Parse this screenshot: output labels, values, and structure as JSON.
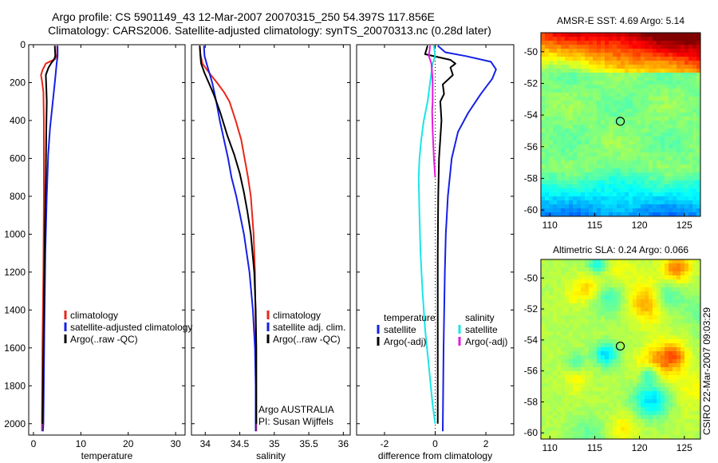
{
  "title_line1": "Argo profile: CS 5901149_43 12-Mar-2007 20070315_250 54.397S 117.856E",
  "title_line2": "Climatology: CARS2006. Satellite-adjusted climatology: synTS_20070313.nc (0.28d later)",
  "side_label": "CSIRO 22-Mar-2007 09:03:29",
  "colors": {
    "red": "#e8261a",
    "blue": "#1520e6",
    "black": "#000000",
    "cyan": "#19e6e6",
    "magenta": "#e61adf"
  },
  "chart_data": [
    {
      "type": "line",
      "id": "temperature",
      "xlabel": "temperature",
      "xlim": [
        -1,
        32
      ],
      "ylim": [
        2060,
        0
      ],
      "y_inverted": true,
      "xticks": [
        0,
        10,
        20,
        30
      ],
      "yticks": [
        0,
        200,
        400,
        600,
        800,
        1000,
        1200,
        1400,
        1600,
        1800,
        2000
      ],
      "legend": {
        "placement": "lower-middle",
        "entries": [
          "climatology",
          "satellite-adjusted climatology",
          "Argo(..raw -QC)"
        ]
      },
      "series": [
        {
          "name": "climatology",
          "color": "red",
          "points": [
            [
              5.0,
              5
            ],
            [
              5.0,
              50
            ],
            [
              4.6,
              75
            ],
            [
              2.6,
              100
            ],
            [
              1.9,
              135
            ],
            [
              1.6,
              160
            ],
            [
              1.8,
              190
            ],
            [
              2.1,
              250
            ],
            [
              2.2,
              400
            ],
            [
              2.2,
              800
            ],
            [
              2.1,
              1200
            ],
            [
              1.9,
              1600
            ],
            [
              1.8,
              2000
            ],
            [
              1.8,
              2040
            ]
          ]
        },
        {
          "name": "satellite-adjusted climatology",
          "color": "blue",
          "points": [
            [
              5.1,
              5
            ],
            [
              5.1,
              60
            ],
            [
              4.9,
              100
            ],
            [
              4.5,
              200
            ],
            [
              4.0,
              320
            ],
            [
              3.5,
              440
            ],
            [
              3.1,
              580
            ],
            [
              2.8,
              800
            ],
            [
              2.5,
              1100
            ],
            [
              2.3,
              1500
            ],
            [
              2.1,
              2000
            ],
            [
              2.0,
              2040
            ]
          ]
        },
        {
          "name": "Argo(..raw -QC)",
          "color": "black",
          "points": [
            [
              4.5,
              5
            ],
            [
              4.6,
              60
            ],
            [
              4.3,
              80
            ],
            [
              3.8,
              95
            ],
            [
              3.2,
              120
            ],
            [
              2.6,
              160
            ],
            [
              2.7,
              220
            ],
            [
              2.8,
              300
            ],
            [
              2.7,
              450
            ],
            [
              2.6,
              700
            ],
            [
              2.4,
              1000
            ],
            [
              2.2,
              1400
            ],
            [
              2.0,
              1800
            ],
            [
              1.9,
              2000
            ]
          ]
        }
      ]
    },
    {
      "type": "line",
      "id": "salinity",
      "xlabel": "salinity",
      "xlim": [
        33.8,
        36.1
      ],
      "ylim": [
        2060,
        0
      ],
      "y_inverted": true,
      "xticks": [
        34,
        34.5,
        35,
        35.5,
        36
      ],
      "xticklabels": [
        "34",
        "34.5",
        "35",
        "35.5",
        "36"
      ],
      "legend": {
        "placement": "lower-right",
        "entries": [
          "climatology",
          "satellite adj. clim.",
          "Argo(..raw -QC)"
        ]
      },
      "annotation": [
        "Argo AUSTRALIA",
        "PI: Susan Wijffels"
      ],
      "series": [
        {
          "name": "climatology",
          "color": "red",
          "points": [
            [
              33.92,
              5
            ],
            [
              33.93,
              50
            ],
            [
              33.96,
              100
            ],
            [
              34.06,
              150
            ],
            [
              34.17,
              200
            ],
            [
              34.27,
              250
            ],
            [
              34.35,
              300
            ],
            [
              34.44,
              400
            ],
            [
              34.52,
              500
            ],
            [
              34.57,
              600
            ],
            [
              34.62,
              700
            ],
            [
              34.66,
              800
            ],
            [
              34.7,
              1000
            ],
            [
              34.72,
              1200
            ],
            [
              34.73,
              1500
            ],
            [
              34.74,
              2000
            ],
            [
              34.74,
              2040
            ]
          ]
        },
        {
          "name": "satellite adj. clim.",
          "color": "blue",
          "points": [
            [
              33.98,
              5
            ],
            [
              33.99,
              60
            ],
            [
              34.02,
              100
            ],
            [
              34.06,
              150
            ],
            [
              34.1,
              200
            ],
            [
              34.16,
              300
            ],
            [
              34.21,
              400
            ],
            [
              34.27,
              500
            ],
            [
              34.33,
              600
            ],
            [
              34.38,
              700
            ],
            [
              34.45,
              800
            ],
            [
              34.56,
              1000
            ],
            [
              34.64,
              1200
            ],
            [
              34.69,
              1400
            ],
            [
              34.72,
              1600
            ],
            [
              34.73,
              1800
            ],
            [
              34.73,
              2040
            ]
          ]
        },
        {
          "name": "Argo(..raw -QC)",
          "color": "black",
          "points": [
            [
              33.92,
              5
            ],
            [
              33.93,
              60
            ],
            [
              33.94,
              100
            ],
            [
              33.99,
              150
            ],
            [
              34.05,
              200
            ],
            [
              34.12,
              260
            ],
            [
              34.22,
              360
            ],
            [
              34.32,
              480
            ],
            [
              34.42,
              580
            ],
            [
              34.5,
              680
            ],
            [
              34.56,
              780
            ],
            [
              34.61,
              880
            ],
            [
              34.66,
              1000
            ],
            [
              34.71,
              1200
            ],
            [
              34.73,
              1400
            ],
            [
              34.74,
              1600
            ],
            [
              34.74,
              1800
            ],
            [
              34.74,
              2000
            ]
          ]
        }
      ]
    },
    {
      "type": "line",
      "id": "difference",
      "xlabel": "difference from climatology",
      "xlim": [
        -3.1,
        3.1
      ],
      "ylim": [
        2060,
        0
      ],
      "y_inverted": true,
      "xticks": [
        -2,
        0,
        2
      ],
      "xticklabels": [
        "-2",
        "0",
        "2"
      ],
      "legend": {
        "placement": "lower",
        "groups": [
          {
            "title": "temperature",
            "entries": [
              {
                "label": "satellite",
                "color": "blue"
              },
              {
                "label": "Argo(-adj)",
                "color": "black"
              }
            ]
          },
          {
            "title": "salinity",
            "entries": [
              {
                "label": "satellite",
                "color": "cyan"
              },
              {
                "label": "Argo(-adj)",
                "color": "magenta"
              }
            ]
          }
        ]
      },
      "series": [
        {
          "name": "temperature satellite",
          "color": "blue",
          "points": [
            [
              0.1,
              5
            ],
            [
              0.4,
              40
            ],
            [
              1.2,
              60
            ],
            [
              2.2,
              90
            ],
            [
              2.4,
              130
            ],
            [
              2.25,
              180
            ],
            [
              1.8,
              260
            ],
            [
              1.3,
              360
            ],
            [
              0.9,
              460
            ],
            [
              0.65,
              600
            ],
            [
              0.5,
              800
            ],
            [
              0.42,
              1000
            ],
            [
              0.38,
              1200
            ],
            [
              0.33,
              1600
            ],
            [
              0.3,
              2040
            ]
          ]
        },
        {
          "name": "temperature Argo(-adj)",
          "color": "black",
          "points": [
            [
              -0.3,
              5
            ],
            [
              -0.4,
              50
            ],
            [
              0.6,
              80
            ],
            [
              0.8,
              100
            ],
            [
              0.6,
              120
            ],
            [
              0.7,
              160
            ],
            [
              0.3,
              210
            ],
            [
              0.35,
              260
            ],
            [
              0.2,
              300
            ],
            [
              0.25,
              400
            ],
            [
              0.15,
              600
            ],
            [
              0.12,
              800
            ],
            [
              0.1,
              1100
            ],
            [
              0.1,
              1500
            ],
            [
              0.1,
              2000
            ]
          ]
        },
        {
          "name": "salinity satellite",
          "color": "cyan",
          "points": [
            [
              -0.05,
              5
            ],
            [
              0.0,
              60
            ],
            [
              -0.1,
              100
            ],
            [
              -0.2,
              200
            ],
            [
              -0.3,
              300
            ],
            [
              -0.45,
              400
            ],
            [
              -0.55,
              500
            ],
            [
              -0.62,
              600
            ],
            [
              -0.65,
              700
            ],
            [
              -0.62,
              900
            ],
            [
              -0.58,
              1100
            ],
            [
              -0.5,
              1300
            ],
            [
              -0.4,
              1500
            ],
            [
              -0.25,
              1700
            ],
            [
              -0.1,
              1900
            ],
            [
              0.0,
              2000
            ]
          ]
        },
        {
          "name": "salinity Argo(-adj)",
          "color": "magenta",
          "points": [
            [
              -0.2,
              5
            ],
            [
              -0.25,
              60
            ],
            [
              -0.15,
              100
            ],
            [
              -0.12,
              150
            ],
            [
              -0.1,
              200
            ],
            [
              -0.1,
              300
            ],
            [
              -0.12,
              350
            ],
            [
              -0.1,
              450
            ],
            [
              -0.05,
              600
            ],
            [
              0.0,
              700
            ]
          ]
        }
      ]
    },
    {
      "type": "heatmap",
      "id": "sst-map",
      "title": "AMSR-E SST: 4.69 Argo: 5.14",
      "xlim": [
        109,
        126.8
      ],
      "ylim": [
        -60.4,
        -48.8
      ],
      "xticks": [
        110,
        115,
        120,
        125
      ],
      "yticks": [
        -50,
        -52,
        -54,
        -56,
        -58,
        -60
      ],
      "argo_location": [
        117.856,
        -54.397
      ]
    },
    {
      "type": "heatmap",
      "id": "sla-map",
      "title": "Altimetric SLA: 0.24 Argo: 0.066",
      "xlim": [
        109,
        126.8
      ],
      "ylim": [
        -60.4,
        -48.8
      ],
      "xticks": [
        110,
        115,
        120,
        125
      ],
      "yticks": [
        -50,
        -52,
        -54,
        -56,
        -58,
        -60
      ],
      "argo_location": [
        117.856,
        -54.397
      ]
    }
  ]
}
